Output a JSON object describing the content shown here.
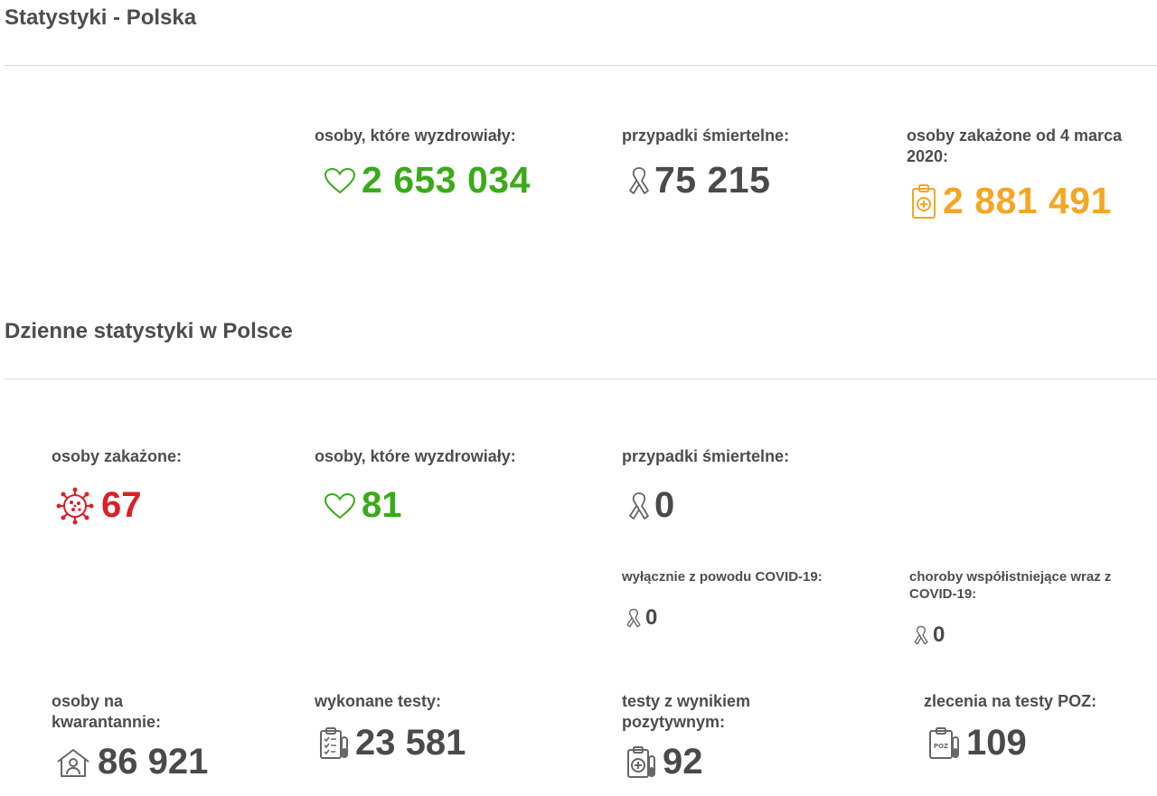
{
  "colors": {
    "green": "#3aaa1a",
    "gray": "#4a4a4a",
    "orange": "#f5a623",
    "red": "#dd1f26",
    "icon_gray": "#666666"
  },
  "summary": {
    "title": "Statystyki - Polska",
    "recovered": {
      "label": "osoby, które wyzdrowiały:",
      "value": "2 653 034",
      "icon": "heart-icon"
    },
    "deaths": {
      "label": "przypadki śmiertelne:",
      "value": "75 215",
      "icon": "ribbon-icon"
    },
    "infected": {
      "label": "osoby zakażone od 4 marca 2020:",
      "value": "2 881 491",
      "icon": "clipboard-medical-icon"
    }
  },
  "daily": {
    "title": "Dzienne statystyki w Polsce",
    "infected": {
      "label": "osoby zakażone:",
      "value": "67",
      "icon": "virus-icon"
    },
    "recovered": {
      "label": "osoby, które wyzdrowiały:",
      "value": "81",
      "icon": "heart-icon"
    },
    "deaths": {
      "label": "przypadki śmiertelne:",
      "value": "0",
      "icon": "ribbon-icon"
    },
    "deaths_covid_only": {
      "label": "wyłącznie z powodu COVID-19:",
      "value": "0",
      "icon": "ribbon-icon"
    },
    "deaths_comorbid": {
      "label": "choroby współistniejące wraz z COVID-19:",
      "value": "0",
      "icon": "ribbon-icon"
    },
    "quarantine": {
      "label": "osoby na kwarantannie:",
      "value": "86 921",
      "icon": "house-person-icon"
    },
    "tests": {
      "label": "wykonane testy:",
      "value": "23 581",
      "icon": "clipboard-test-icon"
    },
    "positive_tests": {
      "label": "testy z wynikiem pozytywnym:",
      "value": "92",
      "icon": "clipboard-plus-tube-icon"
    },
    "poz_orders": {
      "label": "zlecenia na testy POZ:",
      "value": "109",
      "icon": "poz-tube-icon"
    }
  }
}
